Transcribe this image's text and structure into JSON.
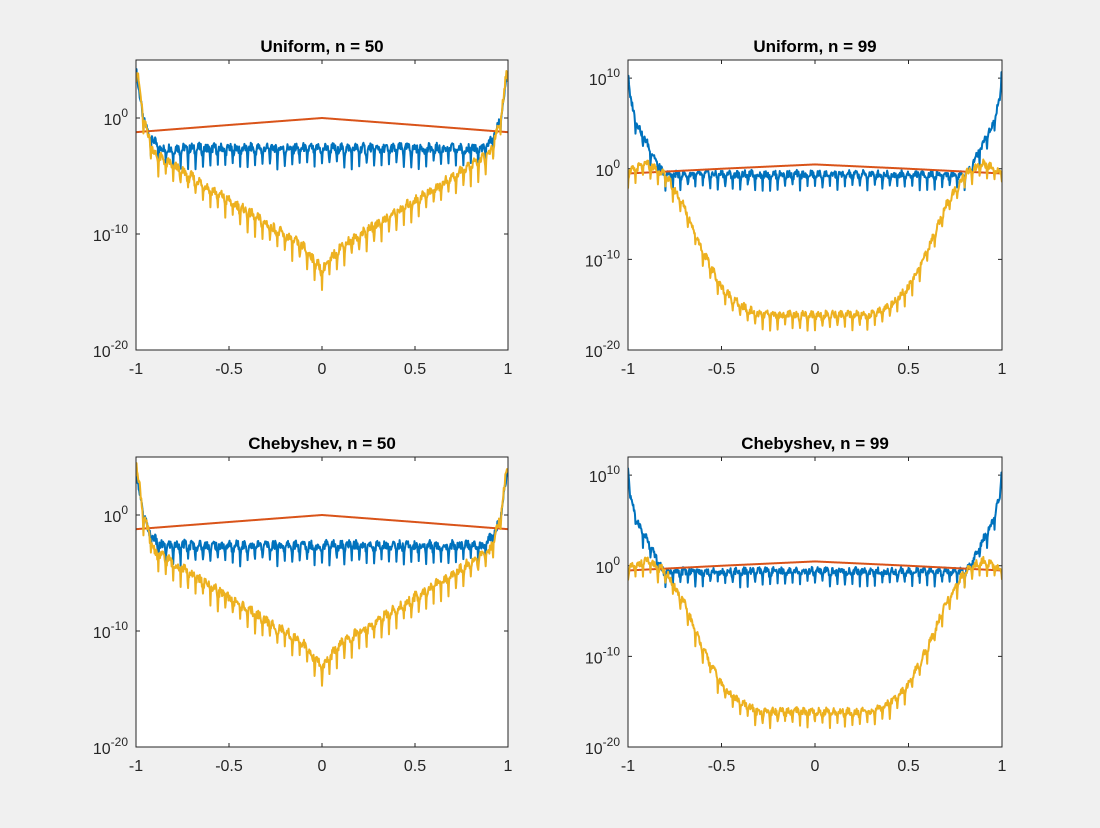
{
  "chart_data": [
    {
      "type": "line",
      "title": "Uniform, n = 50",
      "yscale": "log",
      "xlim": [
        -1,
        1
      ],
      "ylim": [
        1e-20,
        100000.0
      ],
      "xticks": [
        "-1",
        "-0.5",
        "0",
        "0.5",
        "1"
      ],
      "yticks": [
        {
          "base": "10",
          "exp": "-20"
        },
        {
          "base": "10",
          "exp": "-10"
        },
        {
          "base": "10",
          "exp": "0"
        }
      ],
      "series": [
        {
          "color": "#0072bd",
          "points": [
            [
              -1,
              100000
            ],
            [
              -0.99,
              1000
            ],
            [
              -0.97,
              10
            ],
            [
              -0.94,
              0.1
            ],
            [
              -0.9,
              0.01
            ],
            [
              -0.87,
              0.003
            ],
            [
              0.87,
              0.003
            ],
            [
              0.9,
              0.01
            ],
            [
              0.94,
              0.1
            ],
            [
              0.97,
              10
            ],
            [
              0.99,
              1000
            ],
            [
              1,
              100000
            ]
          ]
        },
        {
          "color": "#d95319",
          "points": [
            [
              -1,
              0.06
            ],
            [
              -0.5,
              0.25
            ],
            [
              0,
              1
            ],
            [
              0.5,
              0.25
            ],
            [
              1,
              0.06
            ]
          ]
        },
        {
          "color": "#edb120",
          "points": [
            [
              -1,
              100000
            ],
            [
              -0.96,
              1
            ],
            [
              -0.9,
              0.001
            ],
            [
              -0.8,
              0.0001
            ],
            [
              -0.6,
              1e-06
            ],
            [
              -0.3,
              1e-09
            ],
            [
              -0.1,
              1e-11
            ],
            [
              0,
              1e-13
            ],
            [
              0.1,
              1e-11
            ],
            [
              0.3,
              1e-09
            ],
            [
              0.6,
              1e-06
            ],
            [
              0.8,
              0.0001
            ],
            [
              0.9,
              0.001
            ],
            [
              0.96,
              1
            ],
            [
              1,
              100000
            ]
          ]
        }
      ]
    },
    {
      "type": "line",
      "title": "Uniform, n = 99",
      "yscale": "log",
      "xlim": [
        -1,
        1
      ],
      "ylim": [
        1e-20,
        1000000000000.0
      ],
      "xticks": [
        "-1",
        "-0.5",
        "0",
        "0.5",
        "1"
      ],
      "yticks": [
        {
          "base": "10",
          "exp": "-20"
        },
        {
          "base": "10",
          "exp": "-10"
        },
        {
          "base": "10",
          "exp": "0"
        },
        {
          "base": "10",
          "exp": "10"
        }
      ],
      "series": [
        {
          "color": "#0072bd",
          "points": [
            [
              -1,
              1000000000000.0
            ],
            [
              -0.99,
              100000000.0
            ],
            [
              -0.95,
              100000.0
            ],
            [
              -0.9,
              1000
            ],
            [
              -0.85,
              10
            ],
            [
              -0.81,
              0.3
            ],
            [
              0.81,
              0.3
            ],
            [
              0.85,
              10
            ],
            [
              0.9,
              1000
            ],
            [
              0.95,
              100000.0
            ],
            [
              0.99,
              100000000.0
            ],
            [
              1,
              1000000000000.0
            ]
          ]
        },
        {
          "color": "#d95319",
          "points": [
            [
              -1,
              0.3
            ],
            [
              -0.5,
              1
            ],
            [
              0,
              3
            ],
            [
              0.5,
              1
            ],
            [
              1,
              0.3
            ]
          ]
        },
        {
          "color": "#edb120",
          "points": [
            [
              -1,
              0.5
            ],
            [
              -0.9,
              5
            ],
            [
              -0.8,
              0.3
            ],
            [
              -0.7,
              0.0001
            ],
            [
              -0.6,
              1e-09
            ],
            [
              -0.5,
              1e-13
            ],
            [
              -0.4,
              1e-15
            ],
            [
              -0.3,
              1e-16
            ],
            [
              0,
              1e-16
            ],
            [
              0.3,
              1e-16
            ],
            [
              0.4,
              1e-15
            ],
            [
              0.5,
              1e-13
            ],
            [
              0.6,
              1e-09
            ],
            [
              0.7,
              0.0001
            ],
            [
              0.8,
              0.3
            ],
            [
              0.9,
              5
            ],
            [
              1,
              0.5
            ]
          ]
        }
      ]
    },
    {
      "type": "line",
      "title": "Chebyshev, n = 50",
      "yscale": "log",
      "xlim": [
        -1,
        1
      ],
      "ylim": [
        1e-20,
        100000.0
      ],
      "xticks": [
        "-1",
        "-0.5",
        "0",
        "0.5",
        "1"
      ],
      "yticks": [
        {
          "base": "10",
          "exp": "-20"
        },
        {
          "base": "10",
          "exp": "-10"
        },
        {
          "base": "10",
          "exp": "0"
        }
      ],
      "series": [
        {
          "color": "#0072bd",
          "points": [
            [
              -1,
              100000
            ],
            [
              -0.99,
              1000
            ],
            [
              -0.97,
              10
            ],
            [
              -0.94,
              0.1
            ],
            [
              -0.9,
              0.01
            ],
            [
              -0.87,
              0.003
            ],
            [
              0.87,
              0.003
            ],
            [
              0.9,
              0.01
            ],
            [
              0.94,
              0.1
            ],
            [
              0.97,
              10
            ],
            [
              0.99,
              1000
            ],
            [
              1,
              100000
            ]
          ]
        },
        {
          "color": "#d95319",
          "points": [
            [
              -1,
              0.06
            ],
            [
              -0.5,
              0.25
            ],
            [
              0,
              1
            ],
            [
              0.5,
              0.25
            ],
            [
              1,
              0.06
            ]
          ]
        },
        {
          "color": "#edb120",
          "points": [
            [
              -1,
              100000
            ],
            [
              -0.96,
              1
            ],
            [
              -0.9,
              0.001
            ],
            [
              -0.8,
              0.0001
            ],
            [
              -0.6,
              1e-06
            ],
            [
              -0.3,
              1e-09
            ],
            [
              -0.1,
              1e-11
            ],
            [
              0,
              1e-13
            ],
            [
              0.1,
              1e-11
            ],
            [
              0.3,
              1e-09
            ],
            [
              0.6,
              1e-06
            ],
            [
              0.8,
              0.0001
            ],
            [
              0.9,
              0.001
            ],
            [
              0.96,
              1
            ],
            [
              1,
              100000
            ]
          ]
        }
      ]
    },
    {
      "type": "line",
      "title": "Chebyshev, n = 99",
      "yscale": "log",
      "xlim": [
        -1,
        1
      ],
      "ylim": [
        1e-20,
        1000000000000.0
      ],
      "xticks": [
        "-1",
        "-0.5",
        "0",
        "0.5",
        "1"
      ],
      "yticks": [
        {
          "base": "10",
          "exp": "-20"
        },
        {
          "base": "10",
          "exp": "-10"
        },
        {
          "base": "10",
          "exp": "0"
        },
        {
          "base": "10",
          "exp": "10"
        }
      ],
      "series": [
        {
          "color": "#0072bd",
          "points": [
            [
              -1,
              1000000000000.0
            ],
            [
              -0.99,
              100000000.0
            ],
            [
              -0.95,
              100000.0
            ],
            [
              -0.9,
              1000
            ],
            [
              -0.85,
              10
            ],
            [
              -0.81,
              0.3
            ],
            [
              0.81,
              0.3
            ],
            [
              0.85,
              10
            ],
            [
              0.9,
              1000
            ],
            [
              0.95,
              100000.0
            ],
            [
              0.99,
              100000000.0
            ],
            [
              1,
              1000000000000.0
            ]
          ]
        },
        {
          "color": "#d95319",
          "points": [
            [
              -1,
              0.3
            ],
            [
              -0.5,
              1
            ],
            [
              0,
              3
            ],
            [
              0.5,
              1
            ],
            [
              1,
              0.3
            ]
          ]
        },
        {
          "color": "#edb120",
          "points": [
            [
              -1,
              0.5
            ],
            [
              -0.9,
              5
            ],
            [
              -0.8,
              0.3
            ],
            [
              -0.7,
              0.0001
            ],
            [
              -0.6,
              1e-09
            ],
            [
              -0.5,
              1e-13
            ],
            [
              -0.4,
              1e-15
            ],
            [
              -0.3,
              1e-16
            ],
            [
              0,
              1e-16
            ],
            [
              0.3,
              1e-16
            ],
            [
              0.4,
              1e-15
            ],
            [
              0.5,
              1e-13
            ],
            [
              0.6,
              1e-09
            ],
            [
              0.7,
              0.0001
            ],
            [
              0.8,
              0.3
            ],
            [
              0.9,
              5
            ],
            [
              1,
              0.5
            ]
          ]
        }
      ]
    }
  ]
}
